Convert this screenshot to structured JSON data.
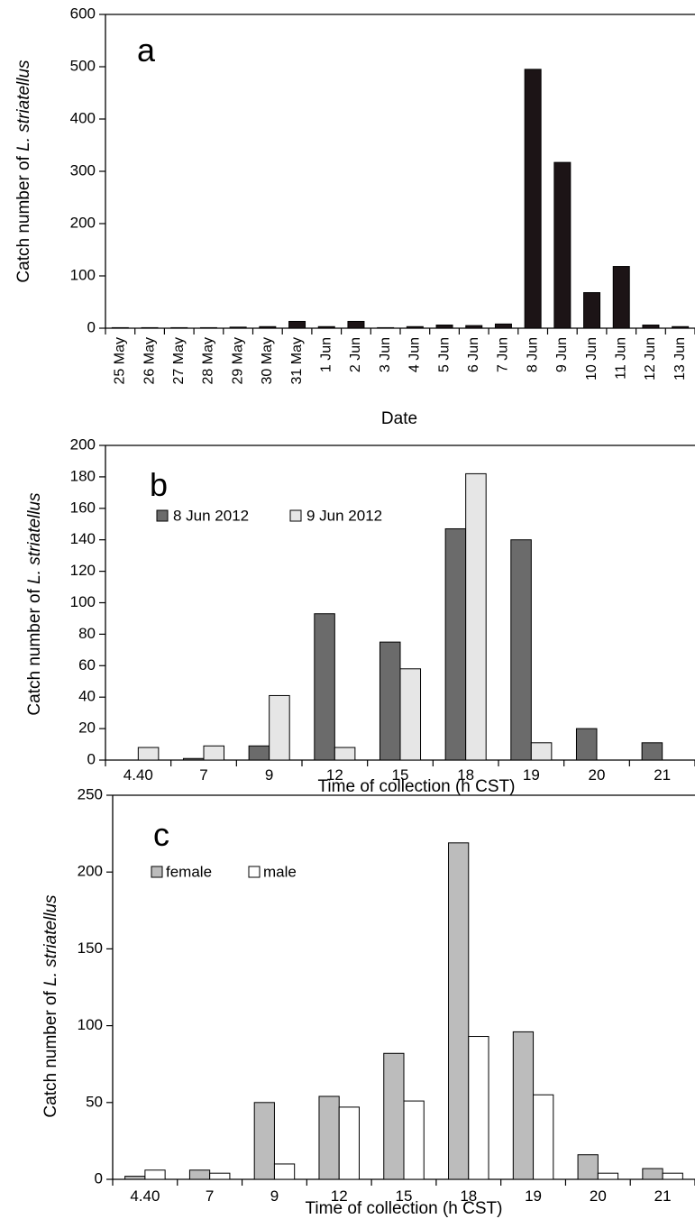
{
  "chart_data": [
    {
      "type": "bar",
      "panel_label": "a",
      "categories": [
        "25 May",
        "26 May",
        "27 May",
        "28 May",
        "29 May",
        "30 May",
        "31 May",
        "1 Jun",
        "2 Jun",
        "3 Jun",
        "4 Jun",
        "5 Jun",
        "6 Jun",
        "7 Jun",
        "8 Jun",
        "9 Jun",
        "10 Jun",
        "11 Jun",
        "12 Jun",
        "13 Jun"
      ],
      "series": [
        {
          "values": [
            1,
            1,
            1,
            1,
            2,
            3,
            13,
            3,
            13,
            1,
            3,
            6,
            5,
            8,
            495,
            317,
            68,
            118,
            6,
            3
          ],
          "color": "#1c1416"
        }
      ],
      "xlabel": "Date",
      "ylabel_prefix": "Catch number of ",
      "ylabel_species": "L. striatellus",
      "ylim": [
        0,
        600
      ],
      "yticks": [
        0,
        100,
        200,
        300,
        400,
        500,
        600
      ],
      "grid": false,
      "legend": "none"
    },
    {
      "type": "bar",
      "panel_label": "b",
      "categories": [
        "4.40",
        "7",
        "9",
        "12",
        "15",
        "18",
        "19",
        "20",
        "21"
      ],
      "series": [
        {
          "name": "8 Jun 2012",
          "values": [
            0,
            1,
            9,
            93,
            75,
            147,
            140,
            20,
            11
          ],
          "color": "#6b6b6b"
        },
        {
          "name": "9 Jun 2012",
          "values": [
            8,
            9,
            41,
            8,
            58,
            182,
            11,
            0,
            0
          ],
          "color": "#e6e6e6"
        }
      ],
      "xlabel": "Time of collection (h CST)",
      "ylabel_prefix": "Catch number of ",
      "ylabel_species": "L. striatellus",
      "ylim": [
        0,
        200
      ],
      "yticks": [
        0,
        20,
        40,
        60,
        80,
        100,
        120,
        140,
        160,
        180,
        200
      ],
      "grid": false,
      "legend": "top-left"
    },
    {
      "type": "bar",
      "panel_label": "c",
      "categories": [
        "4.40",
        "7",
        "9",
        "12",
        "15",
        "18",
        "19",
        "20",
        "21"
      ],
      "series": [
        {
          "name": "female",
          "values": [
            2,
            6,
            50,
            54,
            82,
            219,
            96,
            16,
            7
          ],
          "color": "#bcbcbc"
        },
        {
          "name": "male",
          "values": [
            6,
            4,
            10,
            47,
            51,
            93,
            55,
            4,
            4
          ],
          "color": "#ffffff"
        }
      ],
      "xlabel": "Time of collection (h CST)",
      "ylabel_prefix": "Catch number of ",
      "ylabel_species": "L. striatellus",
      "ylim": [
        0,
        250
      ],
      "yticks": [
        0,
        50,
        100,
        150,
        200,
        250
      ],
      "grid": false,
      "legend": "top-left"
    }
  ]
}
